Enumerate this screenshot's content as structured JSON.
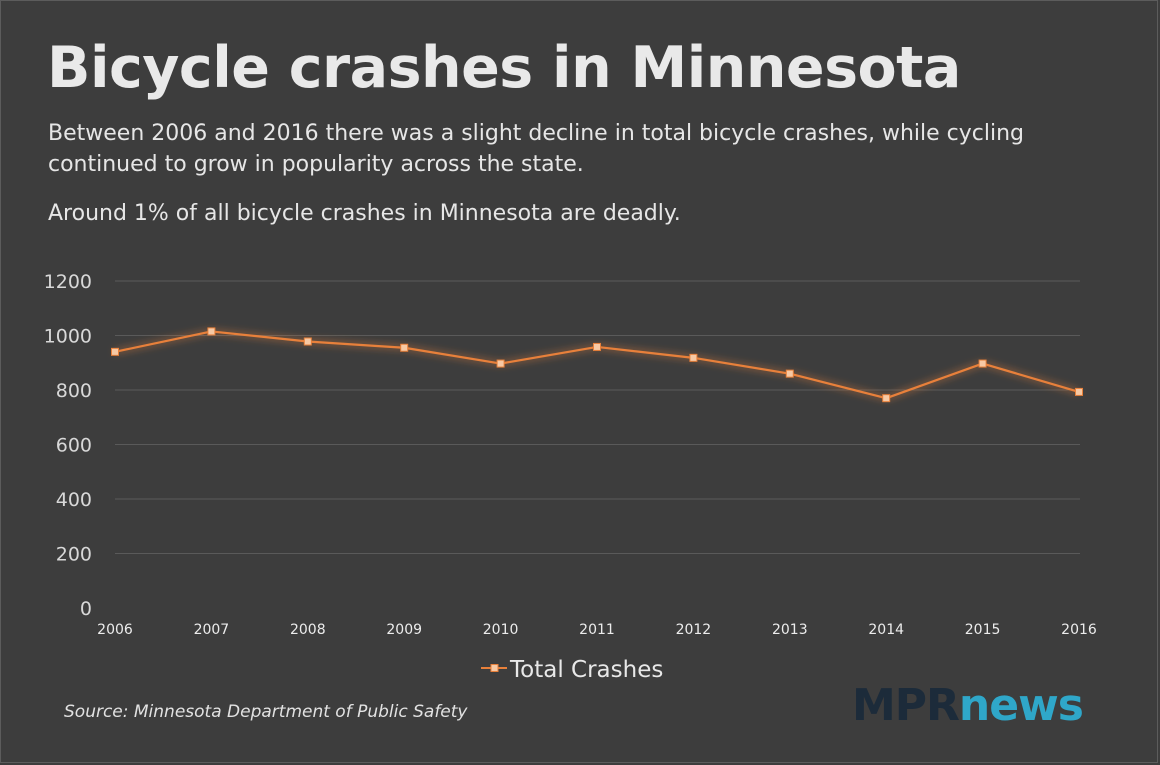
{
  "header": {
    "title": "Bicycle crashes in Minnesota",
    "subtitle": "Between 2006 and 2016 there was a slight decline in total bicycle crashes, while cycling continued to grow in popularity across the state.",
    "subtitle2": "Around 1% of all bicycle crashes in Minnesota are deadly."
  },
  "footer": {
    "source": "Source: Minnesota Department of Public Safety",
    "logo_part1": "MPR",
    "logo_part2": "news"
  },
  "colors": {
    "background": "#3d3d3d",
    "line": "#e8803a",
    "marker": "#f7c9a4",
    "grid": "#5a5a5a",
    "logo_dark": "#1c2b3a",
    "logo_accent": "#2fa7c9"
  },
  "chart_data": {
    "type": "line",
    "x": [
      "2006",
      "2007",
      "2008",
      "2009",
      "2010",
      "2011",
      "2012",
      "2013",
      "2014",
      "2015",
      "2016"
    ],
    "series": [
      {
        "name": "Total Crashes",
        "values": [
          940,
          1015,
          978,
          955,
          897,
          958,
          918,
          860,
          770,
          897,
          793
        ]
      }
    ],
    "yticks": [
      0,
      200,
      400,
      600,
      800,
      1000,
      1200
    ],
    "ylim": [
      0,
      1200
    ],
    "grid": true,
    "legend_position": "bottom"
  }
}
